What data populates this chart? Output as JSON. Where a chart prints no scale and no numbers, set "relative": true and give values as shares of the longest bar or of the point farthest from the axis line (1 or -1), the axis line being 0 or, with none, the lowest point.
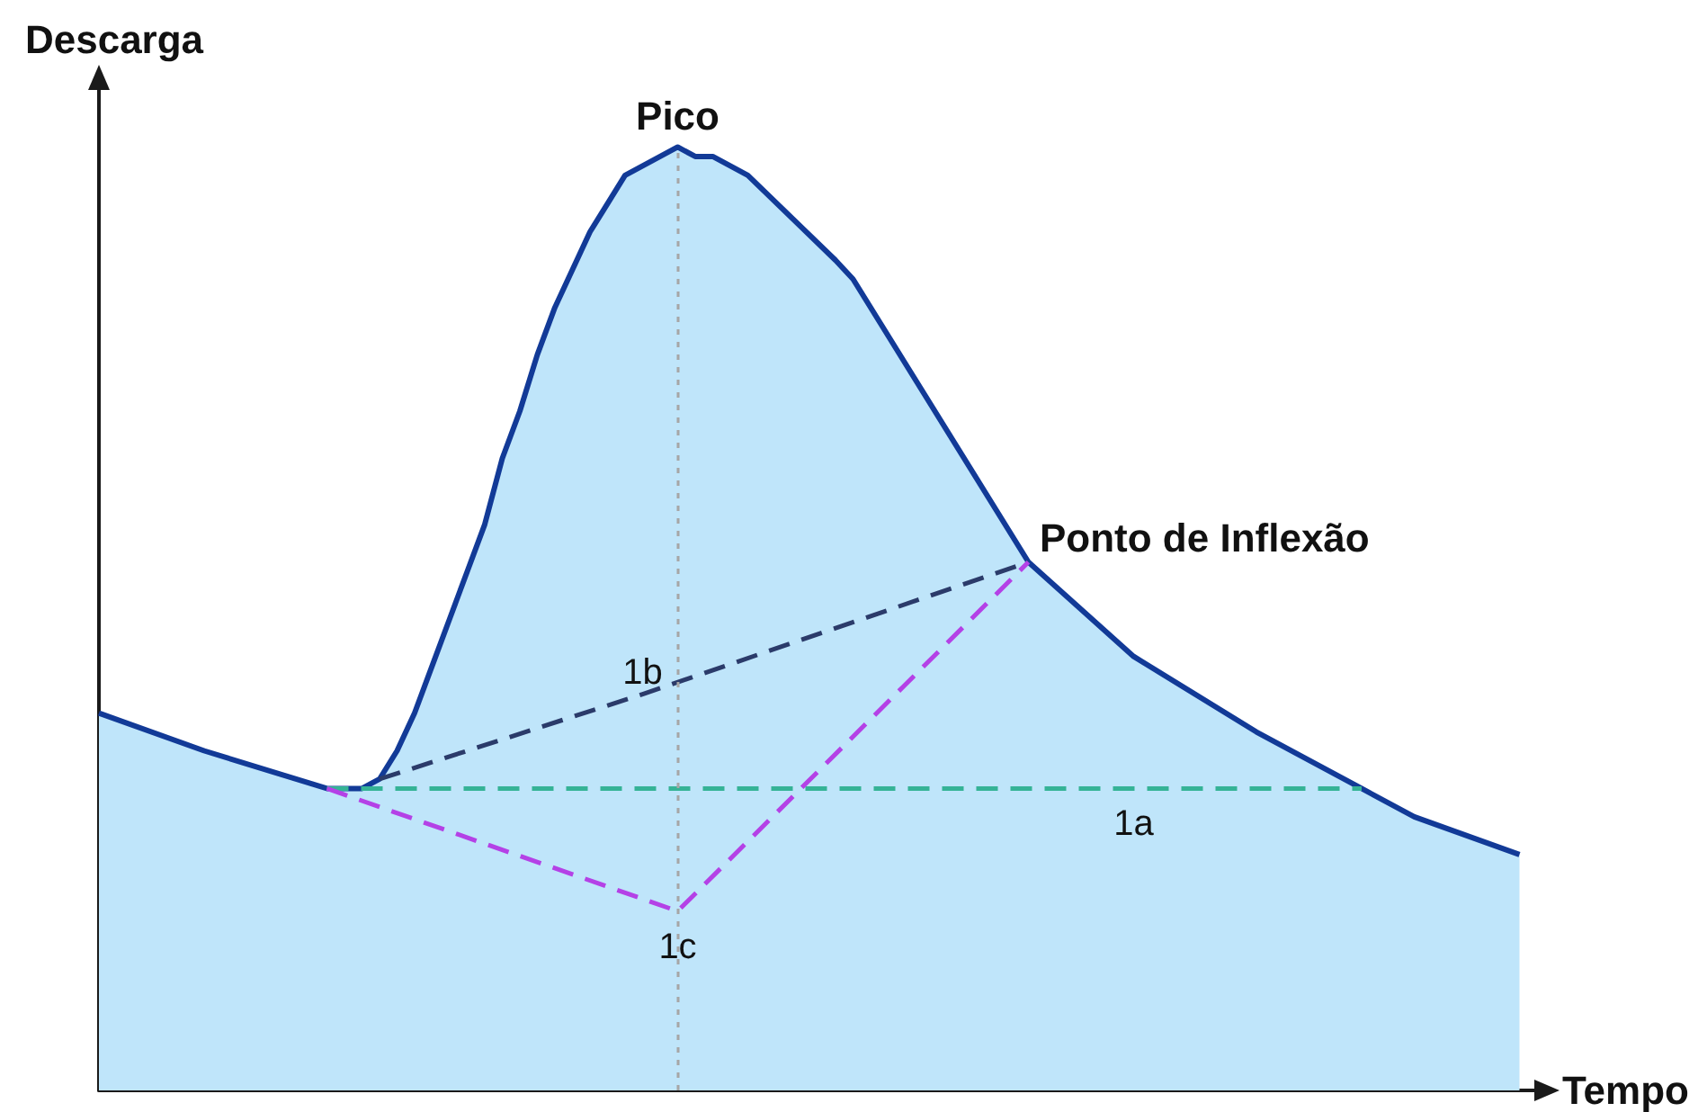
{
  "chart_data": {
    "type": "area",
    "relative": true,
    "xlabel": "Tempo",
    "ylabel": "Descarga",
    "tick_labels": false,
    "marker": "none",
    "line_style": "solid",
    "categories": [
      null,
      null,
      null,
      null,
      null,
      null,
      null,
      null,
      null,
      null,
      null,
      null,
      null,
      null,
      null,
      null,
      null,
      null,
      null,
      null,
      null,
      null,
      null,
      null,
      null,
      null,
      null,
      null,
      null,
      null,
      null,
      null,
      null,
      null,
      null,
      null,
      null,
      null,
      null,
      null,
      null,
      null,
      null,
      null,
      null,
      null,
      null,
      null,
      null,
      null,
      null,
      null,
      null,
      null,
      null,
      null,
      null,
      null,
      null,
      null,
      null,
      null,
      null,
      null,
      null,
      null,
      null,
      null,
      null,
      null,
      null,
      null,
      null,
      null,
      null,
      null,
      null,
      null,
      null,
      null,
      null,
      null,
      null
    ],
    "series": [
      {
        "color": "#123a97",
        "values": [
          0.4,
          null,
          null,
          null,
          null,
          null,
          0.36,
          null,
          null,
          null,
          null,
          null,
          null,
          0.32,
          null,
          0.32,
          0.33,
          0.36,
          0.4,
          0.45,
          0.5,
          0.55,
          0.6,
          0.67,
          0.72,
          0.78,
          0.83,
          0.87,
          0.91,
          0.94,
          0.97,
          0.98,
          0.99,
          1,
          0.99,
          0.99,
          0.98,
          0.97,
          null,
          null,
          null,
          null,
          0.88,
          0.86,
          null,
          null,
          null,
          null,
          null,
          null,
          null,
          null,
          null,
          0.56,
          null,
          null,
          null,
          null,
          null,
          0.46,
          null,
          null,
          null,
          null,
          null,
          null,
          0.38,
          null,
          null,
          null,
          null,
          null,
          0.32,
          null,
          null,
          0.29,
          null,
          null,
          null,
          null,
          null,
          0.25,
          null
        ]
      },
      {
        "type": "line",
        "name": "1a",
        "color": "#35b396",
        "line_style": "dashed",
        "values": [
          null,
          null,
          null,
          null,
          null,
          null,
          null,
          null,
          null,
          null,
          null,
          null,
          null,
          0.32,
          null,
          null,
          null,
          null,
          null,
          null,
          null,
          null,
          null,
          null,
          null,
          null,
          null,
          null,
          null,
          null,
          null,
          null,
          null,
          null,
          null,
          null,
          null,
          null,
          null,
          null,
          null,
          null,
          null,
          null,
          null,
          null,
          null,
          null,
          null,
          null,
          null,
          null,
          null,
          null,
          null,
          null,
          null,
          null,
          null,
          0.32,
          null,
          null,
          null,
          null,
          null,
          null,
          null,
          null,
          null,
          null,
          null,
          null,
          0.32,
          null,
          null,
          null,
          null,
          null,
          null,
          null,
          null,
          null,
          null
        ]
      },
      {
        "type": "line",
        "name": "1b",
        "color": "#2b3b6a",
        "line_style": "dashed",
        "values": [
          null,
          null,
          null,
          null,
          null,
          null,
          null,
          null,
          null,
          null,
          null,
          null,
          null,
          null,
          null,
          null,
          0.33,
          null,
          null,
          null,
          null,
          null,
          null,
          null,
          null,
          null,
          null,
          null,
          null,
          null,
          null,
          0.42,
          null,
          null,
          null,
          null,
          null,
          null,
          null,
          null,
          null,
          null,
          null,
          null,
          null,
          null,
          null,
          null,
          null,
          null,
          null,
          null,
          null,
          0.56,
          null,
          null,
          null,
          null,
          null,
          null,
          null,
          null,
          null,
          null,
          null,
          null,
          null,
          null,
          null,
          null,
          null,
          null,
          null,
          null,
          null,
          null,
          null,
          null,
          null,
          null,
          null,
          null,
          null
        ]
      },
      {
        "type": "line",
        "name": "1c",
        "color": "#b441e6",
        "line_style": "dashed",
        "values": [
          null,
          null,
          null,
          null,
          null,
          null,
          null,
          null,
          null,
          null,
          null,
          null,
          null,
          0.32,
          null,
          null,
          null,
          null,
          null,
          null,
          null,
          null,
          null,
          null,
          null,
          null,
          null,
          null,
          null,
          null,
          null,
          null,
          null,
          0.19,
          null,
          null,
          null,
          null,
          null,
          null,
          null,
          null,
          null,
          null,
          null,
          null,
          null,
          null,
          null,
          null,
          null,
          null,
          null,
          0.56,
          null,
          null,
          null,
          null,
          null,
          null,
          null,
          null,
          null,
          null,
          null,
          null,
          null,
          null,
          null,
          null,
          null,
          null,
          null,
          null,
          null,
          null,
          null,
          null,
          null,
          null,
          null,
          null,
          null
        ]
      }
    ],
    "annotations": [
      {
        "text": "Pico",
        "y": 1
      },
      "Ponto de Inflexão"
    ]
  }
}
